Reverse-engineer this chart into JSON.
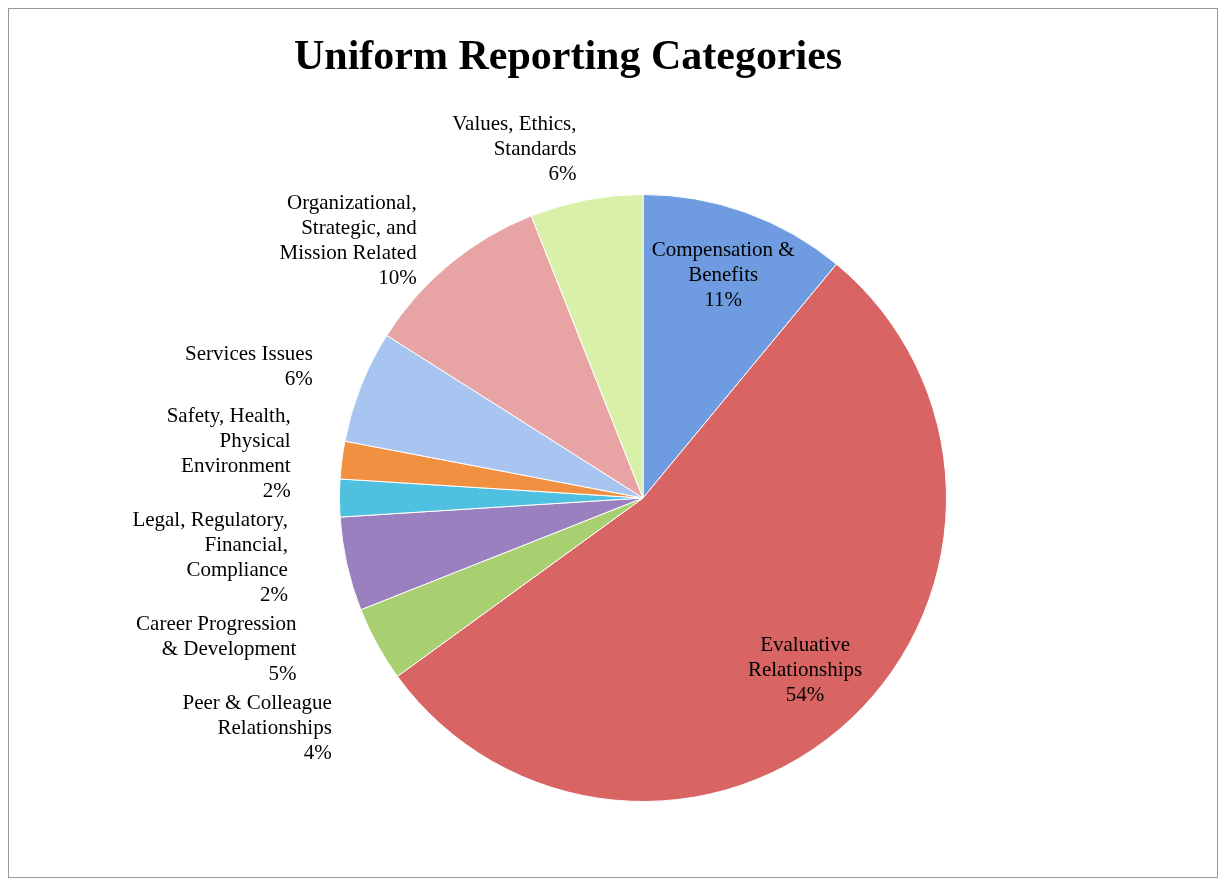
{
  "chart_data": {
    "type": "pie",
    "title": "Uniform Reporting Categories",
    "categories": [
      "Compensation & Benefits",
      "Evaluative Relationships",
      "Peer & Colleague Relationships",
      "Career Progression & Development",
      "Legal, Regulatory, Financial, Compliance",
      "Safety, Health, Physical Environment",
      "Services Issues",
      "Organizational, Strategic, and Mission Related",
      "Values, Ethics, Standards"
    ],
    "values": [
      11,
      54,
      4,
      5,
      2,
      2,
      6,
      10,
      6
    ],
    "value_labels": [
      "11%",
      "54%",
      "4%",
      "5%",
      "2%",
      "2%",
      "6%",
      "10%",
      "6%"
    ],
    "colors": [
      "#6f9be0",
      "#d96464",
      "#a8d070",
      "#9b80c0",
      "#50c0e0",
      "#f09040",
      "#a8c4f0",
      "#e8a4a4",
      "#d8f0a8"
    ]
  }
}
